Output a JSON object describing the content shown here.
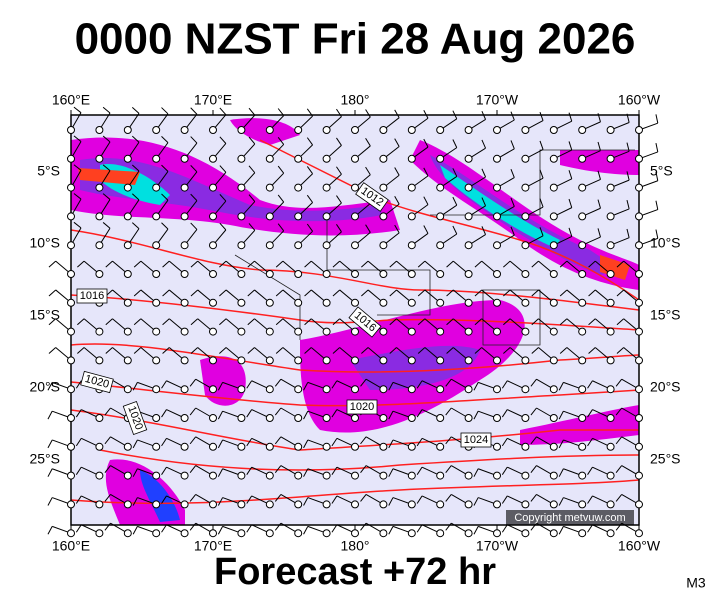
{
  "title": "0000 NZST Fri 28 Aug 2026",
  "map": {
    "top_lon_labels": [
      "160°E",
      "170°E",
      "180°",
      "170°W",
      "160°W"
    ],
    "bottom_lon_labels": [
      "160°E",
      "170°E",
      "180°",
      "170°W",
      "160°W"
    ],
    "left_lat_labels": [
      "5°S",
      "10°S",
      "15°S",
      "20°S",
      "25°S"
    ],
    "right_lat_labels": [
      "5°S",
      "10°S",
      "15°S",
      "20°S",
      "25°S"
    ],
    "isobar_labels": [
      "1012",
      "1016",
      "1016",
      "1020",
      "1020",
      "1020",
      "1024"
    ],
    "copyright": "Copyright metvuw.com"
  },
  "footer": {
    "forecast": "Forecast +72 hr",
    "code": "M3"
  }
}
